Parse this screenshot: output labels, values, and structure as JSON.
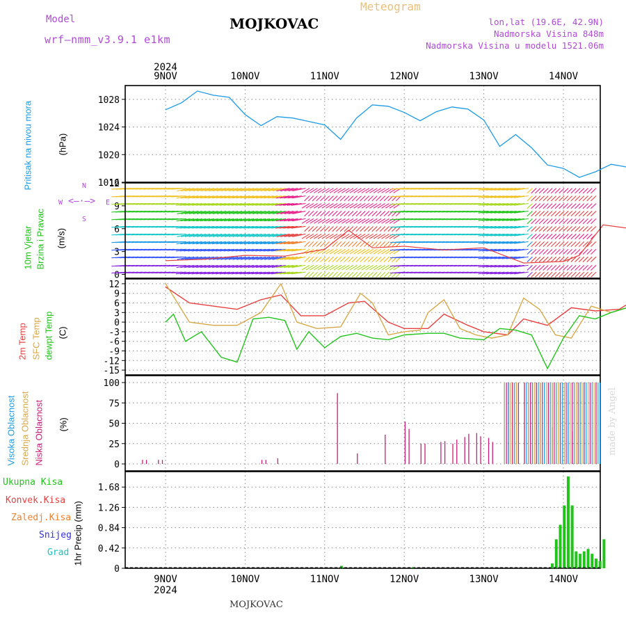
{
  "header": {
    "model_label": "Model",
    "model_name": "wrf—nmm_v3.9.1  e1km",
    "station": "MOJKOVAC",
    "product": "Meteogram",
    "lonlat": "lon,lat (19.6E, 42.9N)",
    "altitude": "Nadmorska Visina 848m",
    "model_altitude": "Nadmorska Visina u modelu 1521.06m",
    "bottom_station": "MOJKOVAC",
    "watermark": "made by Angel"
  },
  "time_axis": {
    "year": "2024",
    "days": [
      "9NOV",
      "10NOV",
      "11NOV",
      "12NOV",
      "13NOV",
      "14NOV"
    ]
  },
  "panels": {
    "pressure": {
      "label1": "Pritisak na nivou mora",
      "unit": "(hPa)"
    },
    "wind": {
      "label1": "10m Vjetar",
      "label2": "Brzina i Pravac",
      "unit": "(m/s)",
      "compass": {
        "n": "N",
        "s": "S",
        "e": "E",
        "w": "W"
      }
    },
    "temp": {
      "label1": "2m Temp",
      "label2": "SFC Temp",
      "label3": "dewpt Temp",
      "unit": "(C)"
    },
    "cloud": {
      "label1": "Visoka Oblacnost",
      "label2": "Srednja Oblacnost",
      "label3": "Niska Oblacnost",
      "unit": "(%)"
    },
    "precip": {
      "label1": "Ukupna Kisa",
      "label2": "Konvek.Kisa",
      "label3": "Zaledj.Kisa",
      "label4": "Snijeg",
      "label5": "Grad",
      "unit": "1hr Precip (mm)"
    }
  },
  "colors": {
    "pressure": "#1e9be6",
    "temp2m": "#e84040",
    "sfc": "#d8a84a",
    "dewpt": "#22c41c",
    "high_cloud": "#1e9be6",
    "mid_cloud": "#d8a84a",
    "low_cloud": "#c81e78",
    "precip_total": "#22c41c",
    "precip_conv": "#e84040",
    "precip_frz": "#f08030",
    "snow": "#3030e0",
    "hail": "#20c0c0",
    "wind_speed": "#e84040"
  },
  "chart_data": [
    {
      "type": "line",
      "title": "Pritisak na nivou mora",
      "ylabel": "(hPa)",
      "ylim": [
        1016,
        1030
      ],
      "yticks": [
        1016,
        1020,
        1024,
        1028
      ],
      "x_days": [
        0,
        6
      ],
      "series": [
        {
          "x": [
            0,
            0.2,
            0.4,
            0.6,
            0.8,
            1.0,
            1.2,
            1.4,
            1.6,
            1.8,
            2.0,
            2.2,
            2.4,
            2.6,
            2.8,
            3.0,
            3.2,
            3.4,
            3.6,
            3.8,
            4.0,
            4.2,
            4.4,
            4.6,
            4.8,
            5.0,
            5.2,
            5.4,
            5.6,
            5.8,
            6.0
          ],
          "values": [
            1026.5,
            1027.5,
            1029.2,
            1028.6,
            1028.3,
            1025.8,
            1024.2,
            1025.5,
            1025.3,
            1024.8,
            1024.3,
            1022.2,
            1025.3,
            1027.2,
            1027.0,
            1026.1,
            1024.9,
            1026.2,
            1026.9,
            1026.6,
            1025.0,
            1021.2,
            1022.9,
            1021.0,
            1018.5,
            1018.0,
            1016.7,
            1017.5,
            1018.6,
            1018.2,
            1017.9
          ]
        }
      ]
    },
    {
      "type": "line",
      "title": "10m Vjetar Brzina i Pravac",
      "ylabel": "(m/s)",
      "ylim": [
        -0.5,
        12
      ],
      "yticks": [
        0,
        3,
        6,
        9,
        12
      ],
      "series": [
        {
          "name": "speed",
          "x": [
            0,
            0.5,
            1.0,
            1.5,
            2.0,
            2.3,
            2.6,
            3.0,
            3.5,
            4.0,
            4.5,
            5.0,
            5.2,
            5.5,
            6.0
          ],
          "values": [
            1.8,
            2.0,
            2.5,
            2.4,
            3.3,
            5.8,
            3.5,
            3.7,
            3.2,
            3.5,
            1.5,
            1.7,
            2.5,
            6.5,
            5.8
          ]
        }
      ],
      "barb_rows": [
        0.3,
        1.2,
        2.3,
        3.3,
        4.3,
        5.3,
        6.3,
        7.3,
        8.3,
        9.3,
        10.3,
        11.3
      ]
    },
    {
      "type": "line",
      "title": "Temperature",
      "ylabel": "(C)",
      "ylim": [
        -16.5,
        13.5
      ],
      "yticks": [
        -15,
        -12,
        -9,
        -6,
        -3,
        0,
        3,
        6,
        9,
        12
      ],
      "series": [
        {
          "name": "2m Temp",
          "x": [
            0,
            0.3,
            0.6,
            0.9,
            1.2,
            1.45,
            1.7,
            2.0,
            2.3,
            2.5,
            2.8,
            3.0,
            3.3,
            3.5,
            3.8,
            4.0,
            4.3,
            4.5,
            4.8,
            5.1,
            5.4,
            5.7,
            6.0
          ],
          "values": [
            11.0,
            6.0,
            5.0,
            4.0,
            7.0,
            8.5,
            2.0,
            2.0,
            6.0,
            6.5,
            0.0,
            -2.0,
            -2.0,
            2.5,
            -1.0,
            -3.0,
            -4.0,
            1.0,
            -1.0,
            4.5,
            3.5,
            4.0,
            8.5
          ]
        },
        {
          "name": "SFC Temp",
          "x": [
            0,
            0.15,
            0.3,
            0.6,
            0.9,
            1.2,
            1.45,
            1.65,
            1.9,
            2.2,
            2.45,
            2.6,
            2.8,
            3.0,
            3.2,
            3.3,
            3.5,
            3.7,
            3.9,
            4.1,
            4.3,
            4.5,
            4.7,
            4.9,
            5.1,
            5.35,
            5.6,
            5.8,
            6.0
          ],
          "values": [
            12.0,
            6.0,
            0.0,
            -1.0,
            -1.0,
            3.0,
            12.0,
            0.0,
            -2.0,
            -1.5,
            9.0,
            6.0,
            -4.0,
            -3.0,
            -2.5,
            3.0,
            7.0,
            -2.0,
            -4.0,
            -5.0,
            -4.0,
            7.5,
            4.0,
            -4.0,
            -5.0,
            5.0,
            3.0,
            4.5,
            12.0
          ]
        },
        {
          "name": "dewpt Temp",
          "x": [
            0,
            0.1,
            0.25,
            0.45,
            0.7,
            0.9,
            1.1,
            1.3,
            1.5,
            1.65,
            1.8,
            2.0,
            2.2,
            2.4,
            2.6,
            2.8,
            3.0,
            3.3,
            3.5,
            3.7,
            4.0,
            4.2,
            4.4,
            4.6,
            4.8,
            5.0,
            5.2,
            5.4,
            5.6,
            5.8,
            6.0
          ],
          "values": [
            0.0,
            2.5,
            -6.0,
            -3.0,
            -11.0,
            -12.5,
            1.0,
            1.5,
            0.5,
            -8.5,
            -3.0,
            -8.0,
            -4.5,
            -3.5,
            -5.0,
            -5.5,
            -4.0,
            -3.5,
            -3.5,
            -5.0,
            -5.5,
            -2.0,
            -2.5,
            -4.0,
            -14.5,
            -5.0,
            2.0,
            1.0,
            3.0,
            4.5,
            7.0
          ]
        }
      ]
    },
    {
      "type": "bar",
      "title": "Oblacnost",
      "ylabel": "(%)",
      "ylim": [
        0,
        100
      ],
      "yticks": [
        0,
        25,
        50,
        75,
        100
      ],
      "series": [
        {
          "name": "Niska Oblacnost",
          "x": [
            0.2,
            0.25,
            0.4,
            0.45,
            1.7,
            1.75,
            1.9,
            2.65,
            2.9,
            3.25,
            3.5,
            3.55,
            3.7,
            3.75,
            3.95,
            4.0,
            4.1,
            4.15,
            4.25,
            4.3,
            4.4,
            4.45,
            4.55,
            4.6,
            4.75,
            4.8,
            5.2,
            5.35,
            5.6
          ],
          "values": [
            5,
            5,
            5,
            5,
            5,
            5,
            7,
            87,
            13,
            36,
            52,
            43,
            25,
            25,
            27,
            28,
            25,
            30,
            33,
            37,
            38,
            34,
            32,
            27,
            100,
            100,
            100,
            45,
            40
          ]
        },
        {
          "name": "Srednja Oblacnost",
          "x": [
            4.75,
            4.85,
            5.0,
            5.1,
            5.3,
            5.5,
            5.7,
            5.9
          ],
          "values": [
            100,
            100,
            100,
            100,
            100,
            100,
            100,
            100
          ]
        },
        {
          "name": "Visoka Oblacnost",
          "x": [
            4.75,
            4.9,
            5.05,
            5.15,
            5.35,
            5.55,
            5.75,
            5.95
          ],
          "values": [
            100,
            100,
            100,
            100,
            100,
            100,
            100,
            100
          ]
        }
      ]
    },
    {
      "type": "bar",
      "title": "1hr Precip",
      "ylabel": "1hr Precip (mm)",
      "ylim": [
        0,
        2.0
      ],
      "yticks": [
        0,
        0.42,
        0.84,
        1.26,
        1.68
      ],
      "series": [
        {
          "name": "Ukupna Kisa",
          "x": [
            2.7,
            3.6,
            5.35,
            5.4,
            5.45,
            5.5,
            5.55,
            5.6,
            5.65,
            5.7,
            5.75,
            5.8,
            5.85,
            5.9,
            5.95,
            6.0
          ],
          "values": [
            0.05,
            0.02,
            0.1,
            0.6,
            0.9,
            1.3,
            1.9,
            1.3,
            0.35,
            0.3,
            0.35,
            0.4,
            0.3,
            0.2,
            0.15,
            0.6
          ]
        }
      ]
    }
  ]
}
